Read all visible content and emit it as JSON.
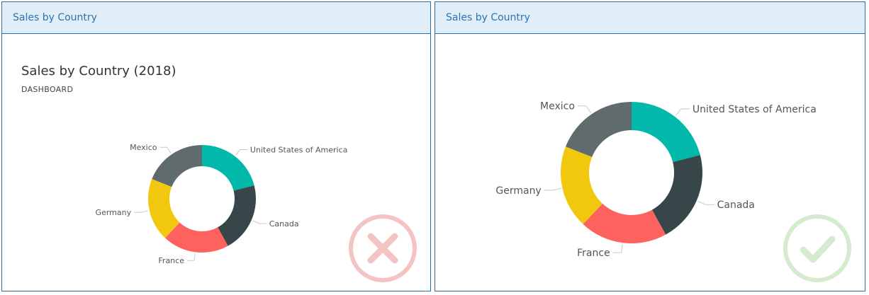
{
  "panels": [
    {
      "header": "Sales by Country",
      "title": "Sales by Country (2018)",
      "subtitle": "DASHBOARD",
      "badge": "x-icon"
    },
    {
      "header": "Sales by Country",
      "badge": "check-icon"
    }
  ],
  "chart_data": [
    {
      "type": "pie",
      "donut": true,
      "title": "Sales by Country (2018)",
      "subtitle": "DASHBOARD",
      "categories": [
        "United States of America",
        "Canada",
        "France",
        "Germany",
        "Mexico"
      ],
      "values": [
        21,
        21,
        20,
        19,
        19
      ],
      "colors": [
        "#01b8aa",
        "#374649",
        "#fd625e",
        "#f2c80f",
        "#5f6b6d"
      ]
    },
    {
      "type": "pie",
      "donut": true,
      "title": "",
      "categories": [
        "United States of America",
        "Canada",
        "France",
        "Germany",
        "Mexico"
      ],
      "values": [
        21,
        21,
        20,
        19,
        19
      ],
      "colors": [
        "#01b8aa",
        "#374649",
        "#fd625e",
        "#f2c80f",
        "#5f6b6d"
      ]
    }
  ],
  "badge_colors": {
    "wrong": "#f4c3c3",
    "right": "#d4ebd0"
  }
}
